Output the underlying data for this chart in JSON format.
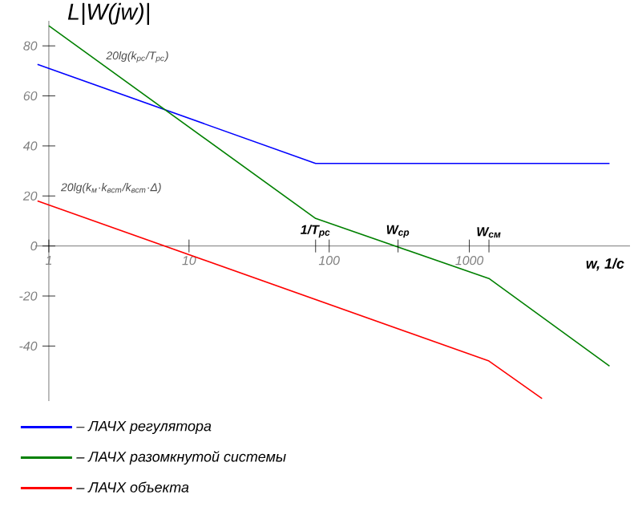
{
  "chart_data": {
    "type": "line",
    "ylabel": "L|W(jw)|",
    "xlabel": "w, 1/c",
    "log": "x",
    "xlim": [
      0.8,
      14000
    ],
    "ylim": [
      -62,
      90
    ],
    "xticks": [
      1,
      10,
      100,
      1000
    ],
    "yticks": [
      80,
      60,
      40,
      20,
      0,
      -20,
      -40
    ],
    "series": [
      {
        "name": "– ЛАЧХ регулятора",
        "color": "#0000ff",
        "x": [
          0.83,
          80,
          10000
        ],
        "values": [
          72.6,
          33,
          33
        ]
      },
      {
        "name": "– ЛАЧХ разомкнутой системы",
        "color": "#008000",
        "x": [
          1,
          80,
          1380,
          10000
        ],
        "values": [
          88,
          11,
          -13,
          -48
        ]
      },
      {
        "name": "– ЛАЧХ объекта",
        "color": "#ff0000",
        "x": [
          0.83,
          1380,
          3300
        ],
        "values": [
          18,
          -46,
          -61
        ]
      }
    ],
    "annotations": [
      "1/T$_{рс}$",
      {
        "text": "W$_{ср}$",
        "x": 310,
        "y": 0
      },
      "W$_{см}$",
      "20lg(k$_{рс}$/T$_{рс}$)",
      "20lg(k$_{м}$·k$_{вст}$/k$_{вст}$·Δ)"
    ],
    "legend": "bottom",
    "marker": "none",
    "line_style": "solid"
  }
}
